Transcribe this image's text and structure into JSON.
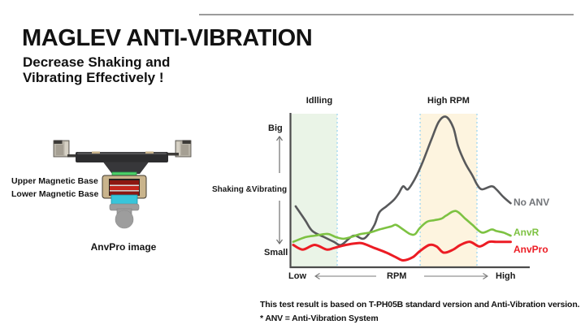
{
  "slide": {
    "title": "MAGLEV ANTI-VIBRATION",
    "subtitle_line1": "Decrease Shaking and",
    "subtitle_line2": "Vibrating Effectively !",
    "footnote_line1": "This test result is based on T-PH05B standard version and Anti-Vibration version.",
    "footnote_line2": "* ANV = Anti-Vibration System"
  },
  "device": {
    "label_upper": "Upper Magnetic Base",
    "label_lower": "Lower Magnetic Base",
    "caption": "AnvPro image",
    "colors": {
      "upper_base": "#4cd168",
      "lower_base": "#38c5da",
      "magnet_red": "#c5251b",
      "magnet_dark": "#8c1711",
      "casing": "#c9b48c",
      "body_dark": "#2d2d2f",
      "stem_gray": "#9d9d9d"
    }
  },
  "chart_data": {
    "type": "line",
    "title": "",
    "xlabel": "RPM (Low to High)",
    "ylabel": "Shaking &Vibrating (Small to Big)",
    "xlim": [
      0,
      100
    ],
    "ylim": [
      0,
      100
    ],
    "grid": false,
    "legend_position": "right-of-line-ends",
    "axes_qualitative": true,
    "x_axis_labels": {
      "left": "Low",
      "center": "RPM",
      "right": "High"
    },
    "y_axis_labels": {
      "top": "Big",
      "bottom": "Small",
      "axis": "Shaking &Vibrating"
    },
    "dotted_line_color": "#a6d9f0",
    "axis_color": "#4c4c4c",
    "regions": [
      {
        "label": "Idlling",
        "x_range": [
          0,
          19.4
        ],
        "fill": "#eaf4e7",
        "dotted_edges": [
          "right"
        ]
      },
      {
        "label": "High RPM",
        "x_range": [
          54.1,
          77.9
        ],
        "fill": "#fdf4df",
        "dotted_edges": [
          "left",
          "right"
        ]
      }
    ],
    "series": [
      {
        "name": "No ANV",
        "color": "#58595b",
        "label_color": "#717478",
        "points": [
          [
            2,
            40
          ],
          [
            6,
            31
          ],
          [
            9,
            24
          ],
          [
            14,
            20
          ],
          [
            18,
            17
          ],
          [
            21,
            15
          ],
          [
            25,
            20
          ],
          [
            27,
            21
          ],
          [
            30,
            19
          ],
          [
            32,
            21
          ],
          [
            35,
            28
          ],
          [
            37,
            36
          ],
          [
            40,
            40
          ],
          [
            43,
            44
          ],
          [
            45,
            48
          ],
          [
            47,
            53
          ],
          [
            49,
            51
          ],
          [
            52,
            58
          ],
          [
            55,
            68
          ],
          [
            59,
            84
          ],
          [
            62,
            95
          ],
          [
            65,
            98
          ],
          [
            68,
            91
          ],
          [
            70,
            79
          ],
          [
            73,
            68
          ],
          [
            76,
            60
          ],
          [
            78,
            54
          ],
          [
            80,
            51
          ],
          [
            84,
            53
          ],
          [
            86,
            51
          ],
          [
            89,
            46
          ],
          [
            92,
            42
          ]
        ]
      },
      {
        "name": "AnvR",
        "color": "#7dc242",
        "label_color": "#7dc242",
        "points": [
          [
            1,
            17
          ],
          [
            6,
            20
          ],
          [
            10,
            21
          ],
          [
            14,
            22
          ],
          [
            16,
            22
          ],
          [
            19,
            20
          ],
          [
            22,
            19
          ],
          [
            25,
            20
          ],
          [
            29,
            22
          ],
          [
            33,
            23
          ],
          [
            37,
            25
          ],
          [
            42,
            27
          ],
          [
            44,
            28
          ],
          [
            47,
            25
          ],
          [
            50,
            22
          ],
          [
            52,
            22
          ],
          [
            54,
            26
          ],
          [
            57,
            30
          ],
          [
            60,
            31
          ],
          [
            63,
            32
          ],
          [
            65,
            34
          ],
          [
            69,
            37
          ],
          [
            73,
            32
          ],
          [
            76,
            28
          ],
          [
            80,
            23
          ],
          [
            84,
            25
          ],
          [
            86,
            24
          ],
          [
            89,
            23
          ],
          [
            92,
            21
          ]
        ]
      },
      {
        "name": "AnvPro",
        "color": "#ec1c24",
        "label_color": "#ec1c24",
        "points": [
          [
            1,
            15
          ],
          [
            5,
            12
          ],
          [
            10,
            15
          ],
          [
            15,
            12
          ],
          [
            18,
            13
          ],
          [
            23,
            15
          ],
          [
            27,
            16
          ],
          [
            30,
            16
          ],
          [
            35,
            13
          ],
          [
            40,
            10
          ],
          [
            44,
            7
          ],
          [
            47,
            5
          ],
          [
            51,
            7
          ],
          [
            54,
            11
          ],
          [
            58,
            15
          ],
          [
            61,
            14
          ],
          [
            64,
            10
          ],
          [
            68,
            12
          ],
          [
            71,
            15
          ],
          [
            75,
            17
          ],
          [
            79,
            14
          ],
          [
            83,
            17
          ],
          [
            86,
            17
          ],
          [
            92,
            17
          ]
        ]
      }
    ]
  }
}
